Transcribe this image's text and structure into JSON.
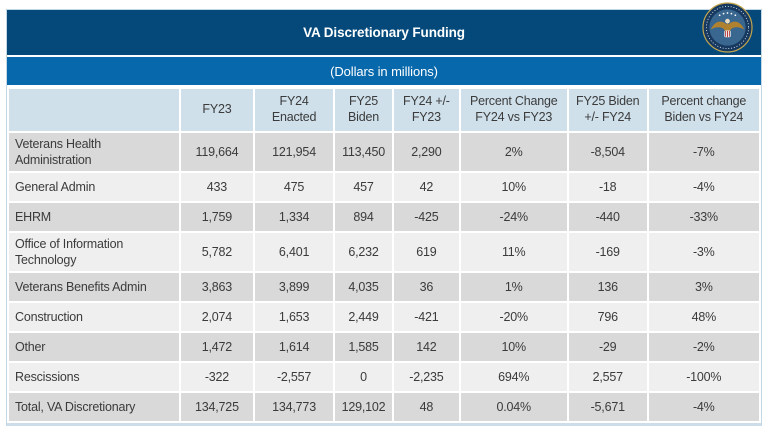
{
  "header": {
    "title": "VA Discretionary Funding",
    "subtitle": "(Dollars in millions)",
    "logo": "va-seal-icon"
  },
  "colors": {
    "title_bar": "#05497b",
    "subtitle_bar": "#0768ac",
    "column_header_bg": "#cfe0eb",
    "row_shade_dark": "#d9d9d9",
    "row_shade_light": "#efefef",
    "bottom_strip": "#ccdde9",
    "text": "#3b3b3b"
  },
  "chart_data": {
    "type": "table",
    "title": "VA Discretionary Funding",
    "subtitle": "(Dollars in millions)",
    "columns": [
      "",
      "FY23",
      "FY24 Enacted",
      "FY25 Biden",
      "FY24 +/- FY23",
      "Percent Change FY24 vs FY23",
      "FY25 Biden +/- FY24",
      "Percent change Biden vs FY24"
    ],
    "rows": [
      [
        "Veterans Health Administration",
        "119,664",
        "121,954",
        "113,450",
        "2,290",
        "2%",
        "-8,504",
        "-7%"
      ],
      [
        "General Admin",
        "433",
        "475",
        "457",
        "42",
        "10%",
        "-18",
        "-4%"
      ],
      [
        "EHRM",
        "1,759",
        "1,334",
        "894",
        "-425",
        "-24%",
        "-440",
        "-33%"
      ],
      [
        "Office of Information Technology",
        "5,782",
        "6,401",
        "6,232",
        "619",
        "11%",
        "-169",
        "-3%"
      ],
      [
        "Veterans Benefits Admin",
        "3,863",
        "3,899",
        "4,035",
        "36",
        "1%",
        "136",
        "3%"
      ],
      [
        "Construction",
        "2,074",
        "1,653",
        "2,449",
        "-421",
        "-20%",
        "796",
        "48%"
      ],
      [
        "Other",
        "1,472",
        "1,614",
        "1,585",
        "142",
        "10%",
        "-29",
        "-2%"
      ],
      [
        "Rescissions",
        "-322",
        "-2,557",
        "0",
        "-2,235",
        "694%",
        "2,557",
        "-100%"
      ],
      [
        "Total, VA Discretionary",
        "134,725",
        "134,773",
        "129,102",
        "48",
        "0.04%",
        "-5,671",
        "-4%"
      ]
    ]
  }
}
